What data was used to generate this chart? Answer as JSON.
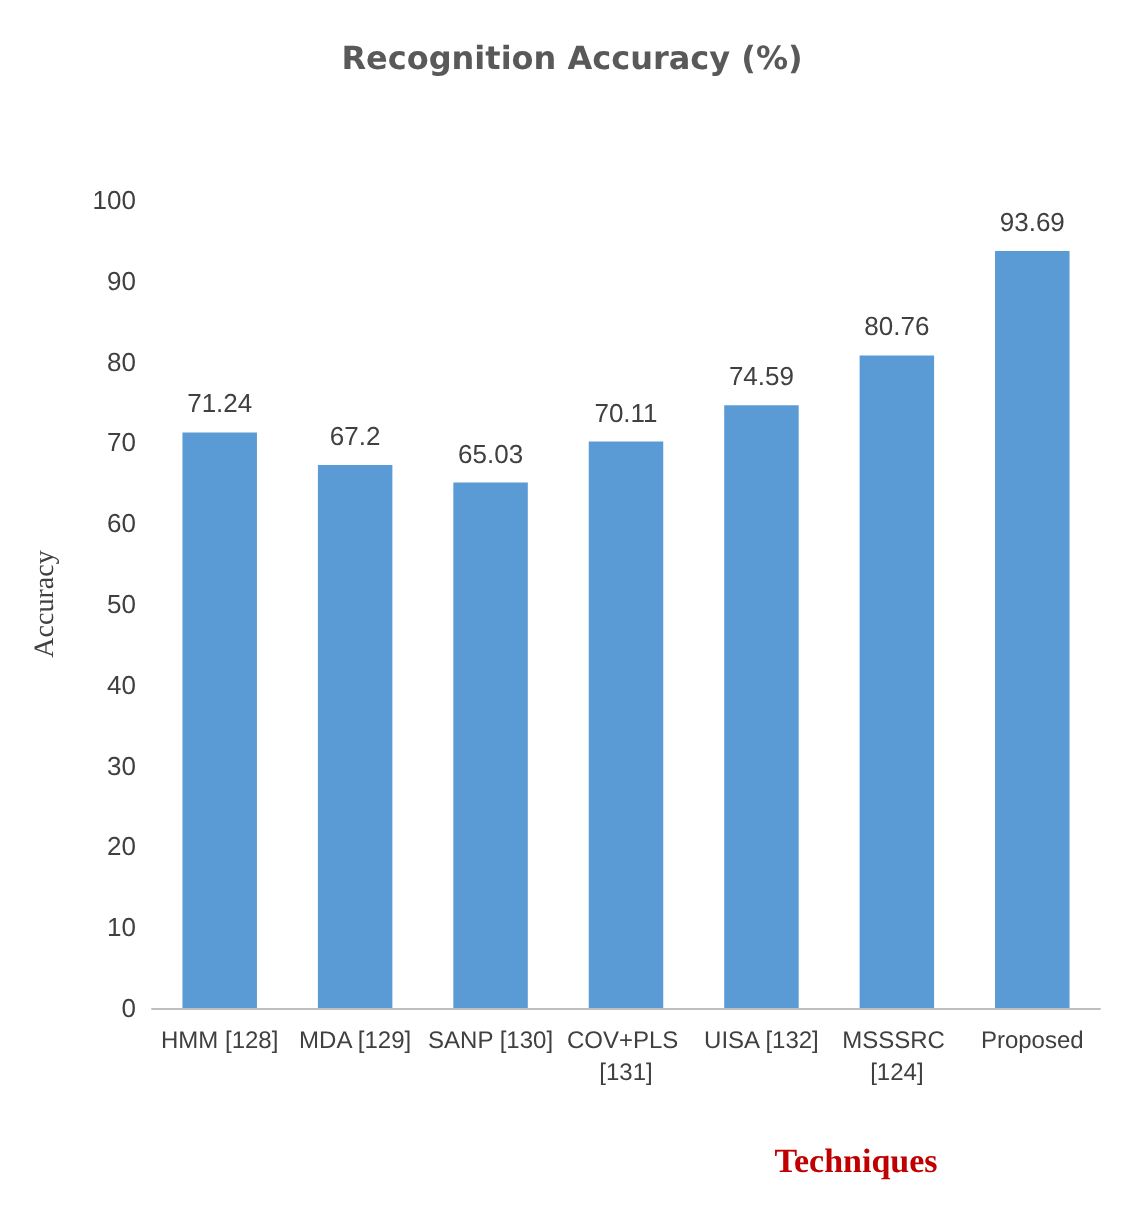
{
  "chart_data": {
    "type": "bar",
    "title": "Recognition Accuracy (%)",
    "xlabel": "Techniques",
    "ylabel": "Accuracy",
    "categories": [
      "HMM [128]",
      "MDA [129]",
      "SANP [130]",
      "COV+PLS [131]",
      "UISA [132]",
      "MSSSRC [124]",
      "Proposed"
    ],
    "values": [
      71.24,
      67.2,
      65.03,
      70.11,
      74.59,
      80.76,
      93.69
    ],
    "color": "#5b9bd5",
    "ylim": [
      0,
      100
    ],
    "yticks": [
      0,
      10,
      20,
      30,
      40,
      50,
      60,
      70,
      80,
      90,
      100
    ],
    "grid": false,
    "data_labels": true
  }
}
